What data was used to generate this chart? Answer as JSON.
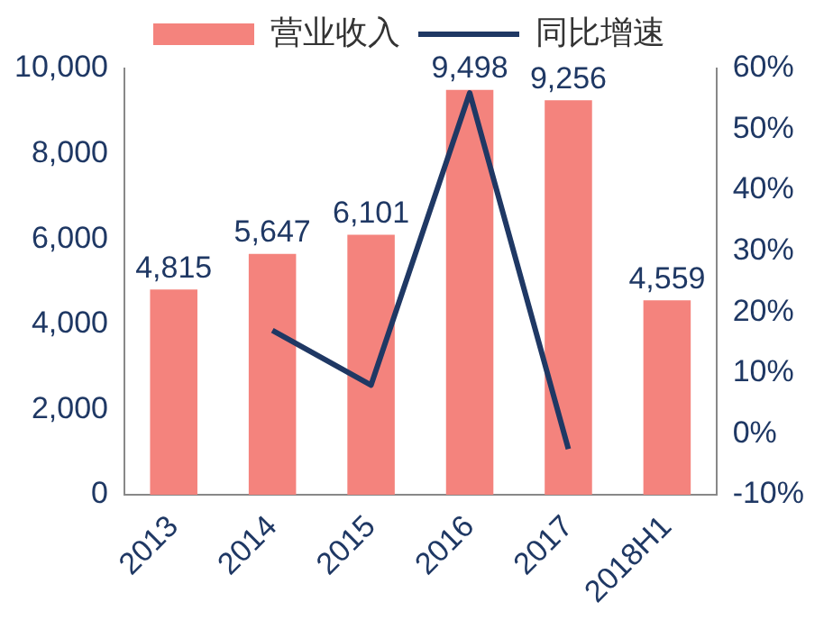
{
  "chart_data": {
    "type": "bar",
    "categories": [
      "2013",
      "2014",
      "2015",
      "2016",
      "2017",
      "2018H1"
    ],
    "series": [
      {
        "name": "营业收入",
        "color": "#f4837d",
        "values": [
          4815,
          5647,
          6101,
          9498,
          9256,
          4559
        ],
        "value_labels": [
          "4,815",
          "5,647",
          "6,101",
          "9,498",
          "9,256",
          "4,559"
        ]
      },
      {
        "name": "同比增速",
        "type": "line",
        "axis": "y2",
        "color": "#1f3864",
        "values": [
          null,
          17,
          8,
          56,
          -2.5,
          null
        ]
      }
    ],
    "ylim": [
      0,
      10000
    ],
    "yticks": [
      0,
      {
        "value": 2000,
        "label": "2,000"
      },
      {
        "value": 4000,
        "label": "4,000"
      },
      {
        "value": 6000,
        "label": "6,000"
      },
      {
        "value": 8000,
        "label": "8,000"
      },
      {
        "value": 10000,
        "label": "10,000"
      }
    ],
    "y2lim": [
      -10,
      60
    ],
    "y2ticks": [
      {
        "value": -10,
        "label": "-10%"
      },
      {
        "value": 0,
        "label": "0%"
      },
      {
        "value": 10,
        "label": "10%"
      },
      {
        "value": 20,
        "label": "20%"
      },
      {
        "value": 30,
        "label": "30%"
      },
      {
        "value": 40,
        "label": "40%"
      },
      {
        "value": 50,
        "label": "50%"
      },
      {
        "value": 60,
        "label": "60%"
      }
    ],
    "legend": "top",
    "grid": false,
    "marker": "none",
    "line_style": "solid"
  }
}
